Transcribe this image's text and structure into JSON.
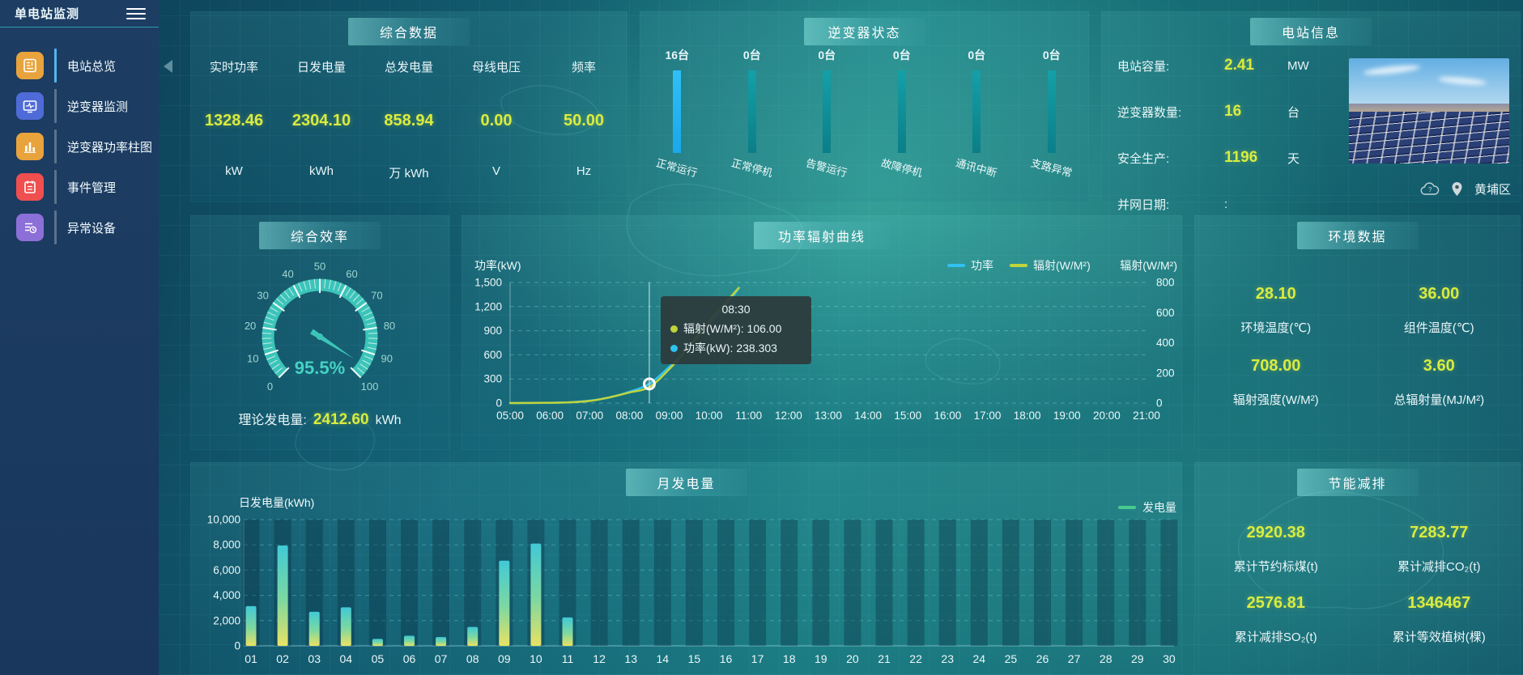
{
  "app": {
    "title": "单电站监测"
  },
  "icons": {
    "menu": "hamburger-icon",
    "collapse": "collapse-left-icon",
    "weather": "cloud-icon",
    "location": "location-pin-icon"
  },
  "sidebar": {
    "items": [
      {
        "label": "电站总览",
        "active": true
      },
      {
        "label": "逆变器监测",
        "active": false
      },
      {
        "label": "逆变器功率柱图",
        "active": false
      },
      {
        "label": "事件管理",
        "active": false
      },
      {
        "label": "异常设备",
        "active": false
      }
    ]
  },
  "summary": {
    "title": "综合数据",
    "metrics": [
      {
        "label": "实时功率",
        "value": "1328.46",
        "unit": "kW"
      },
      {
        "label": "日发电量",
        "value": "2304.10",
        "unit": "kWh"
      },
      {
        "label": "总发电量",
        "value": "858.94",
        "unit": "万 kWh"
      },
      {
        "label": "母线电压",
        "value": "0.00",
        "unit": "V"
      },
      {
        "label": "频率",
        "value": "50.00",
        "unit": "Hz"
      }
    ]
  },
  "inverter_status": {
    "title": "逆变器状态",
    "statuses": [
      {
        "count": "16台",
        "label": "正常运行",
        "highlight": true
      },
      {
        "count": "0台",
        "label": "正常停机",
        "highlight": false
      },
      {
        "count": "0台",
        "label": "告警运行",
        "highlight": false
      },
      {
        "count": "0台",
        "label": "故障停机",
        "highlight": false
      },
      {
        "count": "0台",
        "label": "通讯中断",
        "highlight": false
      },
      {
        "count": "0台",
        "label": "支路异常",
        "highlight": false
      }
    ]
  },
  "station_info": {
    "title": "电站信息",
    "rows": [
      {
        "label": "电站容量:",
        "value": "2.41",
        "unit": "MW"
      },
      {
        "label": "逆变器数量:",
        "value": "16",
        "unit": "台"
      },
      {
        "label": "安全生产:",
        "value": "1196",
        "unit": "天"
      },
      {
        "label": "并网日期:",
        "value": ":",
        "unit": ""
      }
    ],
    "location": "黄埔区"
  },
  "efficiency": {
    "title": "综合效率",
    "value_label": "95.5%",
    "footer_label": "理论发电量:",
    "footer_value": "2412.60",
    "footer_unit": "kWh"
  },
  "power_curve": {
    "title": "功率辐射曲线",
    "y_left_title": "功率(kW)",
    "y_right_title": "辐射(W/M²)",
    "legend": [
      {
        "name": "功率"
      },
      {
        "name": "辐射(W/M²)"
      }
    ],
    "tooltip": {
      "time": "08:30",
      "radiation": "辐射(W/M²): 106.00",
      "power": "功率(kW): 238.303"
    }
  },
  "environment": {
    "title": "环境数据",
    "metrics": [
      {
        "value": "28.10",
        "label": "环境温度(℃)"
      },
      {
        "value": "36.00",
        "label": "组件温度(℃)"
      },
      {
        "value": "708.00",
        "label": "辐射强度(W/M²)"
      },
      {
        "value": "3.60",
        "label": "总辐射量(MJ/M²)"
      }
    ]
  },
  "monthly": {
    "title": "月发电量",
    "y_title": "日发电量(kWh)",
    "legend": "发电量"
  },
  "saving": {
    "title": "节能减排",
    "metrics": [
      {
        "value": "2920.38",
        "label": "累计节约标煤(t)"
      },
      {
        "value": "7283.77",
        "label": "累计减排CO₂(t)"
      },
      {
        "value": "2576.81",
        "label": "累计减排SO₂(t)"
      },
      {
        "value": "1346467",
        "label": "累计等效植树(棵)"
      }
    ]
  },
  "colors": {
    "accent_teal": "#3cc4b9",
    "value_yellow": "#d9ec3f",
    "power_line": "#2fc1f0",
    "radiation_line": "#c0d43c",
    "normal_bar": "#25b6f5",
    "idle_bar": "#0f8d94",
    "bar_gradient": [
      "#41c9d6",
      "#7ed8a0",
      "#e9e264"
    ],
    "legend_green": "#49c98e",
    "active_menu": "#53b7f0"
  },
  "chart_data": [
    {
      "type": "gauge",
      "title": "综合效率",
      "min": 0,
      "max": 100,
      "value": 95.5,
      "display": "95.5%",
      "major_tick": 10,
      "minor_tick": 2
    },
    {
      "type": "line",
      "title": "功率辐射曲线",
      "x_labels": [
        "05:00",
        "06:00",
        "07:00",
        "08:00",
        "09:00",
        "10:00",
        "11:00",
        "12:00",
        "13:00",
        "14:00",
        "15:00",
        "16:00",
        "17:00",
        "18:00",
        "19:00",
        "20:00",
        "21:00"
      ],
      "x_range": [
        5,
        21
      ],
      "y_left": {
        "title": "功率(kW)",
        "min": 0,
        "max": 1500,
        "tick_labels": [
          "0",
          "300",
          "600",
          "900",
          "1,200",
          "1,500"
        ]
      },
      "y_right": {
        "title": "辐射(W/M²)",
        "min": 0,
        "max": 800,
        "tick_labels": [
          "0",
          "200",
          "400",
          "600",
          "800"
        ]
      },
      "series": [
        {
          "name": "功率",
          "color": "#2fc1f0",
          "axis": "left",
          "points": [
            [
              5,
              0
            ],
            [
              5.5,
              1
            ],
            [
              6,
              3
            ],
            [
              6.5,
              9
            ],
            [
              7,
              30
            ],
            [
              7.5,
              70
            ],
            [
              8,
              140
            ],
            [
              8.5,
              238.303
            ],
            [
              9,
              450
            ],
            [
              9.5,
              700
            ],
            [
              10,
              980
            ],
            [
              10.5,
              1260
            ],
            [
              10.75,
              1430
            ]
          ]
        },
        {
          "name": "辐射(W/M²)",
          "color": "#c0d43c",
          "axis": "right",
          "points": [
            [
              5,
              0
            ],
            [
              5.5,
              1
            ],
            [
              6,
              2
            ],
            [
              6.5,
              5
            ],
            [
              7,
              14
            ],
            [
              7.5,
              38
            ],
            [
              8,
              70
            ],
            [
              8.5,
              106
            ],
            [
              9,
              225
            ],
            [
              9.5,
              375
            ],
            [
              10,
              540
            ],
            [
              10.5,
              690
            ],
            [
              10.75,
              765
            ]
          ]
        }
      ],
      "marker": {
        "x": 8.5,
        "series": "功率",
        "value": 238.303
      },
      "tooltip": {
        "time": "08:30",
        "items": [
          {
            "name": "辐射(W/M²)",
            "value": "106.00",
            "color": "#c0d43c"
          },
          {
            "name": "功率(kW)",
            "value": "238.303",
            "color": "#2fc1f0"
          }
        ]
      },
      "legend_position": "top"
    },
    {
      "type": "bar",
      "title": "月发电量",
      "xlabel": "",
      "ylabel": "日发电量(kWh)",
      "legend": "发电量",
      "ylim": [
        0,
        10000
      ],
      "ytick_labels": [
        "0",
        "2,000",
        "4,000",
        "6,000",
        "8,000",
        "10,000"
      ],
      "categories": [
        "01",
        "02",
        "03",
        "04",
        "05",
        "06",
        "07",
        "08",
        "09",
        "10",
        "11",
        "12",
        "13",
        "14",
        "15",
        "16",
        "17",
        "18",
        "19",
        "20",
        "21",
        "22",
        "23",
        "24",
        "25",
        "26",
        "27",
        "28",
        "29",
        "30"
      ],
      "values": [
        3150,
        7950,
        2700,
        3050,
        550,
        800,
        700,
        1500,
        6750,
        8100,
        2250,
        0,
        0,
        0,
        0,
        0,
        0,
        0,
        0,
        0,
        0,
        0,
        0,
        0,
        0,
        0,
        0,
        0,
        0,
        0
      ]
    }
  ]
}
